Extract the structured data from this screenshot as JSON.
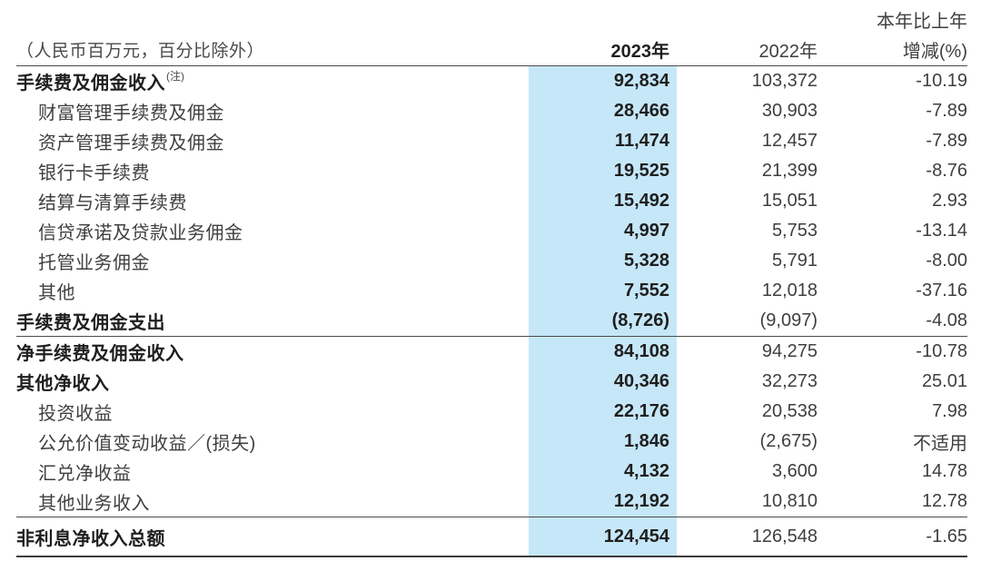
{
  "table": {
    "units_note": "（人民币百万元，百分比除外）",
    "columns": {
      "change_header_top": "本年比上年",
      "y2023": "2023年",
      "y2022": "2022年",
      "change_header_bottom": "增减(%)"
    },
    "rows": [
      {
        "label": "手续费及佣金收入",
        "sup": "(注)",
        "bold": true,
        "indent": false,
        "v2023": "92,834",
        "v2022": "103,372",
        "change": "-10.19",
        "sep_after": false,
        "last": false
      },
      {
        "label": "财富管理手续费及佣金",
        "bold": false,
        "indent": true,
        "v2023": "28,466",
        "v2022": "30,903",
        "change": "-7.89",
        "sep_after": false,
        "last": false
      },
      {
        "label": "资产管理手续费及佣金",
        "bold": false,
        "indent": true,
        "v2023": "11,474",
        "v2022": "12,457",
        "change": "-7.89",
        "sep_after": false,
        "last": false
      },
      {
        "label": "银行卡手续费",
        "bold": false,
        "indent": true,
        "v2023": "19,525",
        "v2022": "21,399",
        "change": "-8.76",
        "sep_after": false,
        "last": false
      },
      {
        "label": "结算与清算手续费",
        "bold": false,
        "indent": true,
        "v2023": "15,492",
        "v2022": "15,051",
        "change": "2.93",
        "sep_after": false,
        "last": false
      },
      {
        "label": "信贷承诺及贷款业务佣金",
        "bold": false,
        "indent": true,
        "v2023": "4,997",
        "v2022": "5,753",
        "change": "-13.14",
        "sep_after": false,
        "last": false
      },
      {
        "label": "托管业务佣金",
        "bold": false,
        "indent": true,
        "v2023": "5,328",
        "v2022": "5,791",
        "change": "-8.00",
        "sep_after": false,
        "last": false
      },
      {
        "label": "其他",
        "bold": false,
        "indent": true,
        "v2023": "7,552",
        "v2022": "12,018",
        "change": "-37.16",
        "sep_after": false,
        "last": false
      },
      {
        "label": "手续费及佣金支出",
        "bold": true,
        "indent": false,
        "v2023": "(8,726)",
        "v2022": "(9,097)",
        "change": "-4.08",
        "sep_after": true,
        "last": false
      },
      {
        "label": "净手续费及佣金收入",
        "bold": true,
        "indent": false,
        "v2023": "84,108",
        "v2022": "94,275",
        "change": "-10.78",
        "sep_after": false,
        "last": false
      },
      {
        "label": "其他净收入",
        "bold": true,
        "indent": false,
        "v2023": "40,346",
        "v2022": "32,273",
        "change": "25.01",
        "sep_after": false,
        "last": false
      },
      {
        "label": "投资收益",
        "bold": false,
        "indent": true,
        "v2023": "22,176",
        "v2022": "20,538",
        "change": "7.98",
        "sep_after": false,
        "last": false
      },
      {
        "label": "公允价值变动收益／(损失)",
        "bold": false,
        "indent": true,
        "v2023": "1,846",
        "v2022": "(2,675)",
        "change": "不适用",
        "sep_after": false,
        "last": false
      },
      {
        "label": "汇兑净收益",
        "bold": false,
        "indent": true,
        "v2023": "4,132",
        "v2022": "3,600",
        "change": "14.78",
        "sep_after": false,
        "last": false
      },
      {
        "label": "其他业务收入",
        "bold": false,
        "indent": true,
        "v2023": "12,192",
        "v2022": "10,810",
        "change": "12.78",
        "sep_after": true,
        "last": false
      },
      {
        "label": "非利息净收入总额",
        "bold": true,
        "indent": false,
        "v2023": "124,454",
        "v2022": "126,548",
        "change": "-1.65",
        "sep_after": false,
        "last": true
      }
    ]
  },
  "colors": {
    "highlight_2023_column": "#c6e7f8",
    "rule": "#4c4c4c",
    "bottom_rule": "#3c3c3c"
  }
}
